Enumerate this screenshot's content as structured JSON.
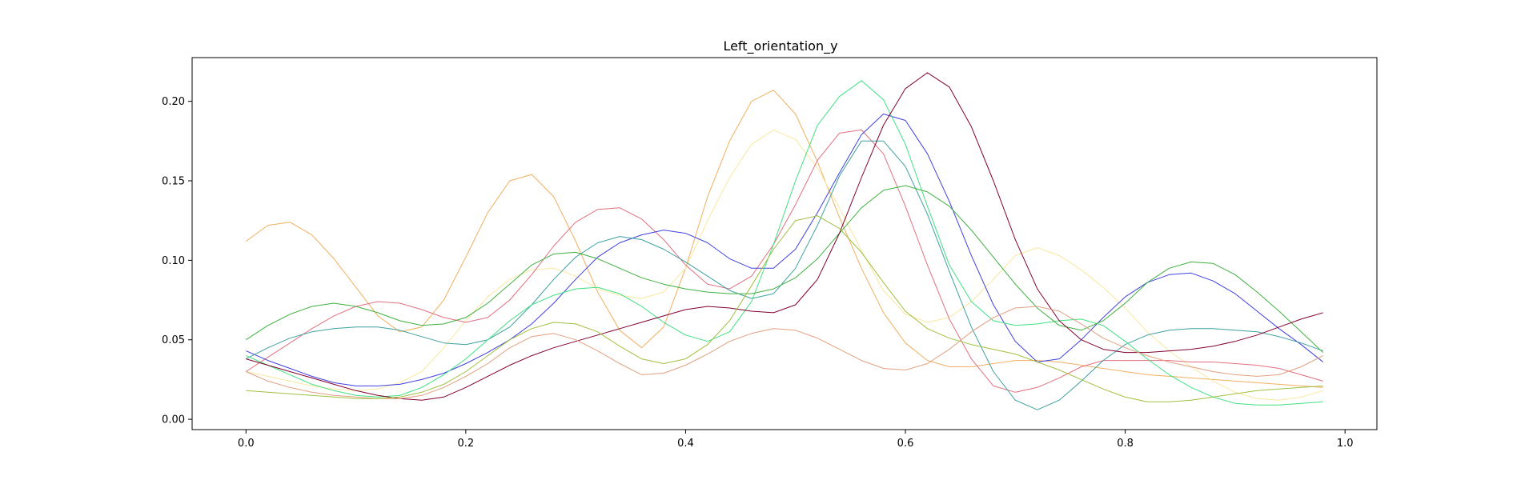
{
  "chart_data": {
    "type": "line",
    "title": "Left_orientation_y",
    "xlabel": "",
    "ylabel": "",
    "xlim": [
      -0.049,
      1.029
    ],
    "ylim": [
      -0.0065,
      0.2275
    ],
    "grid": false,
    "legend": "none",
    "xticks": [
      0.0,
      0.2,
      0.4,
      0.6,
      0.8,
      1.0
    ],
    "xtick_labels": [
      "0.0",
      "0.2",
      "0.4",
      "0.6",
      "0.8",
      "1.0"
    ],
    "yticks": [
      0.0,
      0.05,
      0.1,
      0.15,
      0.2
    ],
    "ytick_labels": [
      "0.00",
      "0.05",
      "0.10",
      "0.15",
      "0.20"
    ],
    "x": [
      0.0,
      0.02,
      0.04,
      0.06,
      0.08,
      0.1,
      0.12,
      0.14,
      0.16,
      0.18,
      0.2,
      0.22,
      0.24,
      0.26,
      0.28,
      0.3,
      0.32,
      0.34,
      0.36,
      0.38,
      0.4,
      0.42,
      0.44,
      0.46,
      0.48,
      0.5,
      0.52,
      0.54,
      0.56,
      0.58,
      0.6,
      0.62,
      0.64,
      0.66,
      0.68,
      0.7,
      0.72,
      0.74,
      0.76,
      0.78,
      0.8,
      0.82,
      0.84,
      0.86,
      0.88,
      0.9,
      0.92,
      0.94,
      0.96,
      0.98
    ],
    "series": [
      {
        "color": "#f0b060",
        "values": [
          0.112,
          0.122,
          0.124,
          0.116,
          0.101,
          0.083,
          0.065,
          0.055,
          0.058,
          0.075,
          0.102,
          0.13,
          0.15,
          0.154,
          0.14,
          0.112,
          0.08,
          0.056,
          0.045,
          0.058,
          0.095,
          0.14,
          0.175,
          0.2,
          0.207,
          0.192,
          0.162,
          0.127,
          0.095,
          0.067,
          0.048,
          0.037,
          0.033,
          0.033,
          0.035,
          0.037,
          0.037,
          0.036,
          0.034,
          0.032,
          0.03,
          0.028,
          0.027,
          0.026,
          0.025,
          0.024,
          0.023,
          0.022,
          0.021,
          0.02
        ]
      },
      {
        "color": "#f8e8a0",
        "values": [
          0.03,
          0.027,
          0.024,
          0.021,
          0.019,
          0.018,
          0.019,
          0.023,
          0.03,
          0.045,
          0.062,
          0.077,
          0.088,
          0.094,
          0.095,
          0.09,
          0.082,
          0.078,
          0.076,
          0.08,
          0.095,
          0.125,
          0.152,
          0.173,
          0.182,
          0.176,
          0.158,
          0.133,
          0.106,
          0.081,
          0.066,
          0.061,
          0.064,
          0.074,
          0.088,
          0.103,
          0.108,
          0.103,
          0.094,
          0.083,
          0.07,
          0.055,
          0.043,
          0.033,
          0.024,
          0.017,
          0.013,
          0.012,
          0.014,
          0.018
        ]
      },
      {
        "color": "#e07080",
        "values": [
          0.03,
          0.039,
          0.048,
          0.057,
          0.065,
          0.071,
          0.074,
          0.073,
          0.069,
          0.064,
          0.061,
          0.064,
          0.075,
          0.091,
          0.109,
          0.124,
          0.132,
          0.133,
          0.126,
          0.113,
          0.097,
          0.085,
          0.082,
          0.09,
          0.11,
          0.135,
          0.163,
          0.18,
          0.182,
          0.167,
          0.134,
          0.097,
          0.063,
          0.038,
          0.021,
          0.017,
          0.02,
          0.026,
          0.033,
          0.037,
          0.037,
          0.037,
          0.037,
          0.036,
          0.036,
          0.035,
          0.034,
          0.032,
          0.028,
          0.024
        ]
      },
      {
        "color": "#4040e0",
        "values": [
          0.043,
          0.037,
          0.032,
          0.027,
          0.023,
          0.021,
          0.021,
          0.022,
          0.025,
          0.029,
          0.035,
          0.042,
          0.05,
          0.06,
          0.073,
          0.088,
          0.102,
          0.111,
          0.116,
          0.119,
          0.117,
          0.111,
          0.101,
          0.095,
          0.095,
          0.107,
          0.13,
          0.155,
          0.179,
          0.192,
          0.188,
          0.167,
          0.137,
          0.103,
          0.072,
          0.049,
          0.036,
          0.038,
          0.05,
          0.064,
          0.077,
          0.086,
          0.091,
          0.092,
          0.087,
          0.079,
          0.068,
          0.057,
          0.047,
          0.036
        ]
      },
      {
        "color": "#40a0a0",
        "values": [
          0.038,
          0.045,
          0.051,
          0.055,
          0.057,
          0.058,
          0.058,
          0.056,
          0.052,
          0.048,
          0.047,
          0.05,
          0.058,
          0.072,
          0.088,
          0.102,
          0.111,
          0.115,
          0.113,
          0.107,
          0.099,
          0.09,
          0.081,
          0.076,
          0.079,
          0.095,
          0.122,
          0.153,
          0.175,
          0.175,
          0.159,
          0.129,
          0.093,
          0.058,
          0.03,
          0.012,
          0.006,
          0.012,
          0.024,
          0.037,
          0.047,
          0.053,
          0.056,
          0.057,
          0.057,
          0.056,
          0.055,
          0.052,
          0.048,
          0.043
        ]
      },
      {
        "color": "#40e080",
        "values": [
          0.04,
          0.034,
          0.028,
          0.022,
          0.018,
          0.015,
          0.014,
          0.015,
          0.02,
          0.028,
          0.038,
          0.05,
          0.062,
          0.072,
          0.078,
          0.082,
          0.083,
          0.079,
          0.071,
          0.061,
          0.053,
          0.049,
          0.055,
          0.074,
          0.11,
          0.15,
          0.185,
          0.203,
          0.213,
          0.201,
          0.173,
          0.134,
          0.097,
          0.074,
          0.062,
          0.059,
          0.06,
          0.062,
          0.063,
          0.059,
          0.049,
          0.038,
          0.028,
          0.02,
          0.014,
          0.01,
          0.009,
          0.009,
          0.01,
          0.011
        ]
      },
      {
        "color": "#40b040",
        "values": [
          0.05,
          0.059,
          0.066,
          0.071,
          0.073,
          0.071,
          0.067,
          0.062,
          0.059,
          0.06,
          0.064,
          0.073,
          0.085,
          0.097,
          0.104,
          0.105,
          0.101,
          0.095,
          0.089,
          0.085,
          0.082,
          0.08,
          0.079,
          0.079,
          0.082,
          0.089,
          0.101,
          0.117,
          0.133,
          0.144,
          0.147,
          0.143,
          0.134,
          0.119,
          0.102,
          0.085,
          0.07,
          0.059,
          0.056,
          0.062,
          0.073,
          0.086,
          0.095,
          0.099,
          0.098,
          0.091,
          0.08,
          0.068,
          0.055,
          0.042
        ]
      },
      {
        "color": "#800030",
        "values": [
          0.038,
          0.034,
          0.03,
          0.026,
          0.022,
          0.018,
          0.015,
          0.013,
          0.012,
          0.014,
          0.02,
          0.027,
          0.034,
          0.04,
          0.045,
          0.049,
          0.053,
          0.057,
          0.061,
          0.065,
          0.069,
          0.071,
          0.07,
          0.068,
          0.067,
          0.072,
          0.088,
          0.117,
          0.152,
          0.185,
          0.208,
          0.218,
          0.209,
          0.184,
          0.15,
          0.113,
          0.082,
          0.062,
          0.05,
          0.044,
          0.042,
          0.042,
          0.043,
          0.044,
          0.046,
          0.049,
          0.053,
          0.058,
          0.063,
          0.067
        ]
      },
      {
        "color": "#e0a080",
        "values": [
          0.03,
          0.024,
          0.02,
          0.017,
          0.015,
          0.014,
          0.013,
          0.013,
          0.015,
          0.02,
          0.027,
          0.035,
          0.045,
          0.052,
          0.054,
          0.05,
          0.043,
          0.035,
          0.028,
          0.029,
          0.034,
          0.041,
          0.049,
          0.054,
          0.057,
          0.056,
          0.051,
          0.044,
          0.037,
          0.032,
          0.031,
          0.035,
          0.044,
          0.055,
          0.064,
          0.07,
          0.071,
          0.068,
          0.06,
          0.051,
          0.045,
          0.04,
          0.036,
          0.033,
          0.03,
          0.028,
          0.027,
          0.028,
          0.033,
          0.04
        ]
      },
      {
        "color": "#a0c040",
        "values": [
          0.018,
          0.017,
          0.016,
          0.015,
          0.014,
          0.013,
          0.013,
          0.014,
          0.017,
          0.022,
          0.03,
          0.04,
          0.05,
          0.057,
          0.061,
          0.06,
          0.055,
          0.046,
          0.038,
          0.035,
          0.038,
          0.047,
          0.062,
          0.084,
          0.107,
          0.125,
          0.128,
          0.12,
          0.105,
          0.086,
          0.068,
          0.057,
          0.051,
          0.047,
          0.044,
          0.041,
          0.036,
          0.031,
          0.025,
          0.019,
          0.014,
          0.011,
          0.011,
          0.012,
          0.014,
          0.016,
          0.018,
          0.019,
          0.02,
          0.021
        ]
      }
    ]
  }
}
